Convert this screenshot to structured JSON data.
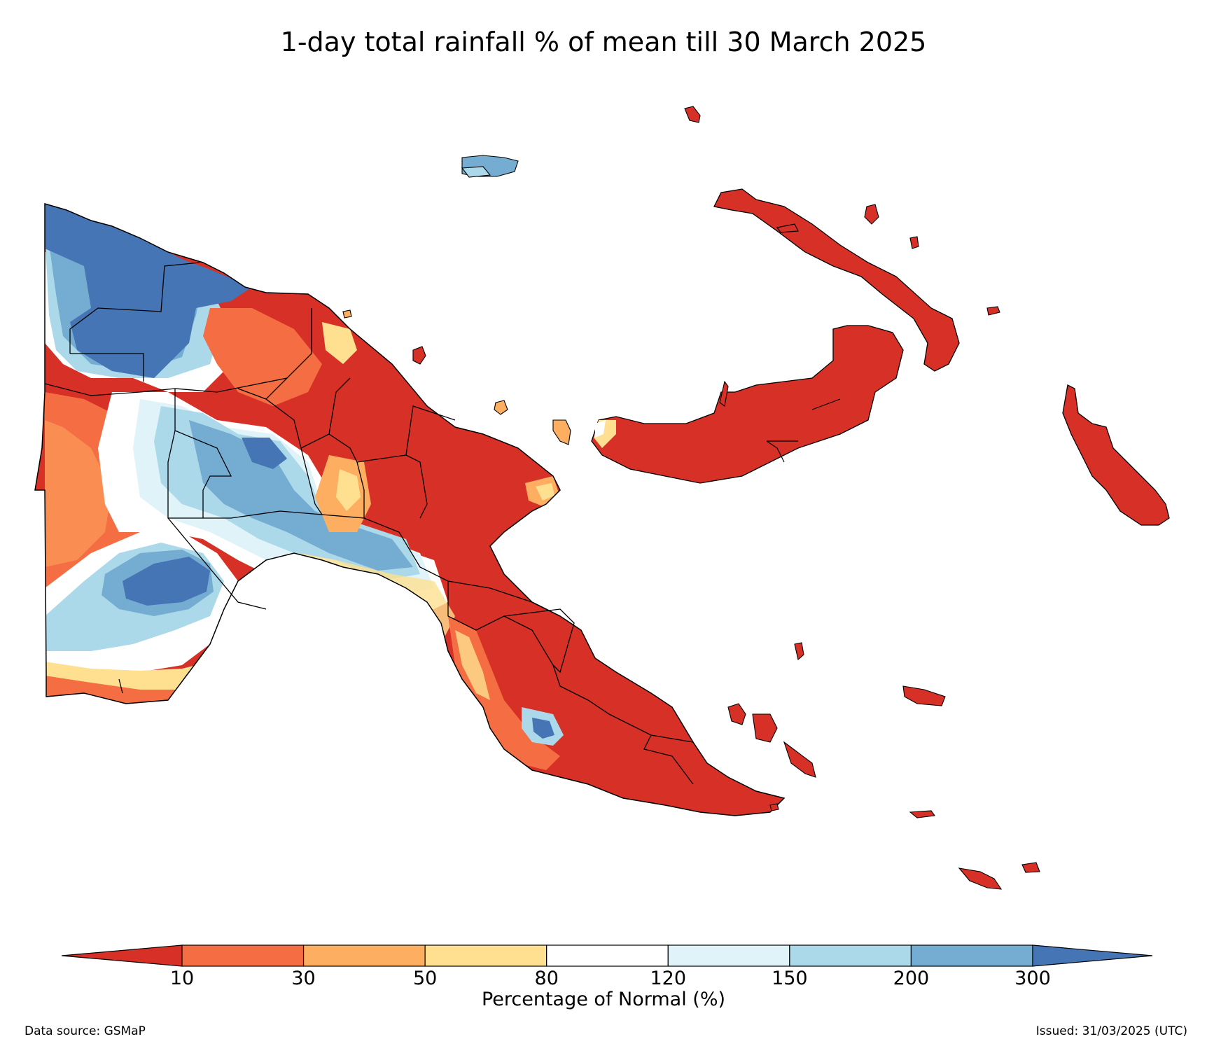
{
  "title": "1-day total rainfall % of mean till 30 March 2025",
  "legend": {
    "title": "Percentage of Normal (%)",
    "ticks": [
      "10",
      "30",
      "50",
      "80",
      "120",
      "150",
      "200",
      "300"
    ],
    "bins": [
      {
        "range": "<10",
        "color": "#d73027"
      },
      {
        "range": "10-30",
        "color": "#f46d43"
      },
      {
        "range": "30-50",
        "color": "#fdae61"
      },
      {
        "range": "50-80",
        "color": "#fee090"
      },
      {
        "range": "80-120",
        "color": "#ffffff"
      },
      {
        "range": "120-150",
        "color": "#e0f3f8"
      },
      {
        "range": "150-200",
        "color": "#abd9e9"
      },
      {
        "range": "200-300",
        "color": "#74add1"
      },
      {
        "range": ">300",
        "color": "#4575b4"
      }
    ]
  },
  "footer": {
    "source": "Data source: GSMaP",
    "issued": "Issued: 31/03/2025 (UTC)"
  }
}
